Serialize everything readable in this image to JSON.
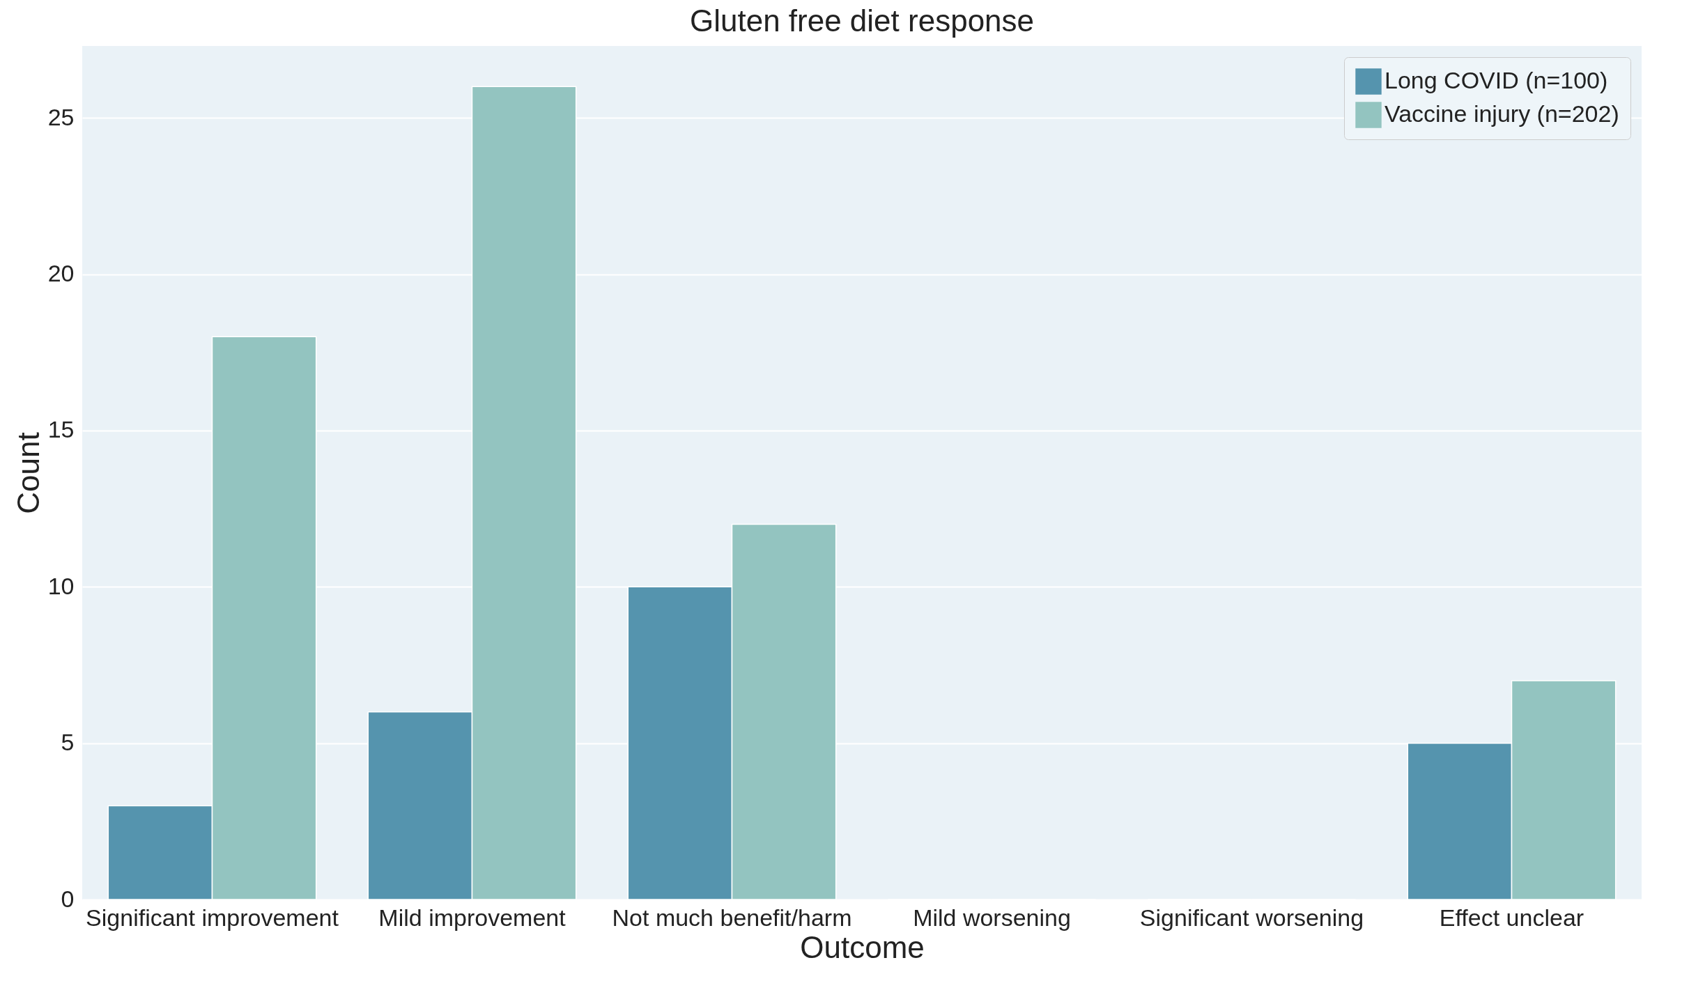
{
  "chart_data": {
    "type": "bar",
    "title": "Gluten free diet response",
    "xlabel": "Outcome",
    "ylabel": "Count",
    "categories": [
      "Significant improvement",
      "Mild improvement",
      "Not much benefit/harm",
      "Mild worsening",
      "Significant worsening",
      "Effect unclear"
    ],
    "series": [
      {
        "name": "Long COVID (n=100)",
        "color": "#5594ae",
        "values": [
          3,
          6,
          10,
          0,
          0,
          5
        ]
      },
      {
        "name": "Vaccine injury (n=202)",
        "color": "#93c4c0",
        "values": [
          18,
          26,
          12,
          0,
          0,
          7
        ]
      }
    ],
    "ylim": [
      0,
      27.3
    ],
    "yticks": [
      0,
      5,
      10,
      15,
      20,
      25
    ],
    "grid": "y",
    "legend": "top right"
  }
}
